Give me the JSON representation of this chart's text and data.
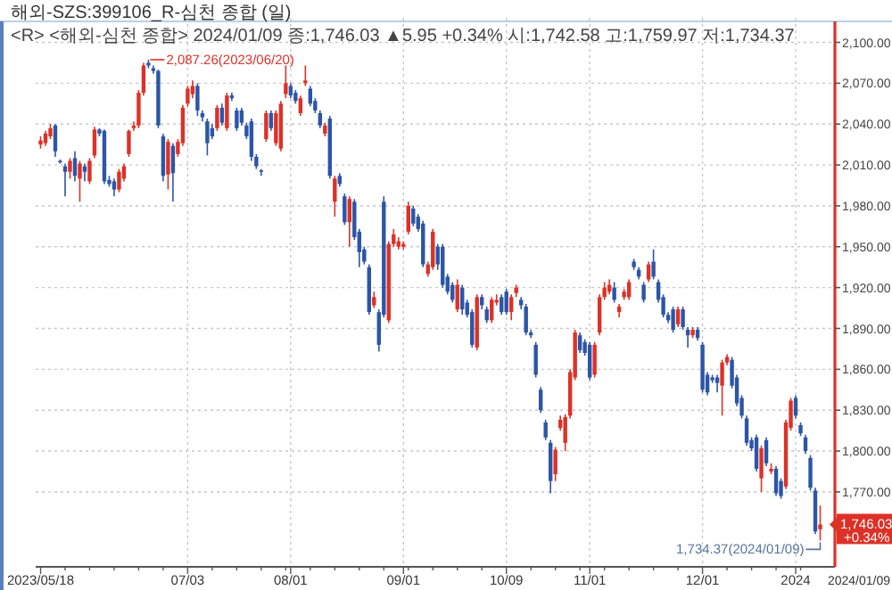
{
  "chart_data": {
    "type": "candlestick",
    "title": "해외-SZS:399106_R-심천 종합 (일)",
    "subtitle": "<R> <해외-심천 종합> 2024/01/09 종:1,746.03 ▲5.95 +0.34% 시:1,742.58 고:1,759.97 저:1,734.37",
    "categories": [
      "2023/05/18",
      null,
      null,
      null,
      null,
      null,
      null,
      null,
      null,
      null,
      null,
      null,
      null,
      null,
      null,
      null,
      null,
      null,
      null,
      null,
      null,
      null,
      null,
      null,
      null,
      null,
      null,
      null,
      null,
      null,
      "07/03",
      null,
      null,
      null,
      null,
      null,
      null,
      null,
      null,
      null,
      null,
      null,
      null,
      null,
      null,
      null,
      null,
      null,
      null,
      null,
      null,
      "08/01",
      null,
      null,
      null,
      null,
      null,
      null,
      null,
      null,
      null,
      null,
      null,
      null,
      null,
      null,
      null,
      null,
      null,
      null,
      null,
      null,
      null,
      null,
      "09/01",
      null,
      null,
      null,
      null,
      null,
      null,
      null,
      null,
      null,
      null,
      null,
      null,
      null,
      null,
      null,
      null,
      null,
      null,
      null,
      null,
      "10/09",
      null,
      null,
      null,
      null,
      null,
      null,
      null,
      null,
      null,
      null,
      null,
      null,
      null,
      null,
      null,
      null,
      "11/01",
      null,
      null,
      null,
      null,
      null,
      null,
      null,
      null,
      null,
      null,
      null,
      null,
      null,
      null,
      null,
      null,
      null,
      null,
      null,
      null,
      null,
      null,
      "12/01",
      null,
      null,
      null,
      null,
      null,
      null,
      null,
      null,
      null,
      null,
      null,
      null,
      null,
      null,
      null,
      null,
      null,
      null,
      "2024",
      null,
      null,
      null,
      null,
      null
    ],
    "ohlc": [
      [
        2025,
        2031,
        2022,
        2028
      ],
      [
        2026,
        2035,
        2024,
        2033
      ],
      [
        2031,
        2040,
        2029,
        2037
      ],
      [
        2039,
        2040,
        2016,
        2020
      ],
      [
        2013,
        2014,
        2011,
        2012
      ],
      [
        2009,
        2011,
        1987,
        2005
      ],
      [
        2005,
        2015,
        2000,
        2013
      ],
      [
        2015,
        2020,
        1998,
        2002
      ],
      [
        2000,
        2013,
        1983,
        2011
      ],
      [
        2009,
        2011,
        1998,
        2005
      ],
      [
        1998,
        2015,
        1996,
        2013
      ],
      [
        2017,
        2038,
        2015,
        2036
      ],
      [
        2036,
        2037,
        2031,
        2033
      ],
      [
        2035,
        2036,
        1996,
        1998
      ],
      [
        1999,
        2002,
        1994,
        1996
      ],
      [
        1998,
        2000,
        1987,
        1992
      ],
      [
        1992,
        2007,
        1990,
        2005
      ],
      [
        2000,
        2011,
        1998,
        2009
      ],
      [
        2018,
        2036,
        2016,
        2035
      ],
      [
        2037,
        2042,
        2035,
        2039
      ],
      [
        2039,
        2065,
        2037,
        2063
      ],
      [
        2063,
        2085,
        2061,
        2083
      ],
      [
        2085,
        2087.26,
        2081,
        2083
      ],
      [
        2081,
        2083,
        2077,
        2079
      ],
      [
        2079,
        2080,
        2037,
        2039
      ],
      [
        2031,
        2033,
        1998,
        2002
      ],
      [
        2003,
        2029,
        1992,
        2027
      ],
      [
        2024,
        2026,
        1983,
        2004
      ],
      [
        2018,
        2029,
        2016,
        2027
      ],
      [
        2026,
        2054,
        2024,
        2052
      ],
      [
        2055,
        2068,
        2053,
        2066
      ],
      [
        2062,
        2072,
        2059,
        2068
      ],
      [
        2068,
        2070,
        2046,
        2050
      ],
      [
        2048,
        2050,
        2042,
        2045
      ],
      [
        2042,
        2044,
        2017,
        2026
      ],
      [
        2037,
        2040,
        2029,
        2031
      ],
      [
        2037,
        2054,
        2035,
        2052
      ],
      [
        2052,
        2055,
        2039,
        2041
      ],
      [
        2037,
        2063,
        2035,
        2061
      ],
      [
        2061,
        2063,
        2057,
        2059
      ],
      [
        2050,
        2052,
        2035,
        2037
      ],
      [
        2050,
        2052,
        2039,
        2041
      ],
      [
        2039,
        2041,
        2029,
        2031
      ],
      [
        2042,
        2044,
        2013,
        2016
      ],
      [
        2016,
        2018,
        2007,
        2009
      ],
      [
        2006,
        2007,
        2002,
        2005
      ],
      [
        2029,
        2050,
        2027,
        2048
      ],
      [
        2048,
        2050,
        2035,
        2037
      ],
      [
        2026,
        2050,
        2024,
        2048
      ],
      [
        2022,
        2057,
        2020,
        2055
      ],
      [
        2062,
        2083,
        2059,
        2070
      ],
      [
        2068,
        2070,
        2059,
        2061
      ],
      [
        2063,
        2065,
        2055,
        2057
      ],
      [
        2048,
        2061,
        2046,
        2059
      ],
      [
        2070,
        2083,
        2068,
        2072
      ],
      [
        2066,
        2068,
        2053,
        2055
      ],
      [
        2057,
        2059,
        2048,
        2050
      ],
      [
        2048,
        2050,
        2037,
        2039
      ],
      [
        2033,
        2041,
        2031,
        2039
      ],
      [
        2044,
        2046,
        2000,
        2002
      ],
      [
        1983,
        2002,
        1972,
        2000
      ],
      [
        2002,
        2004,
        1994,
        1996
      ],
      [
        1987,
        1989,
        1966,
        1968
      ],
      [
        1968,
        1987,
        1950,
        1985
      ],
      [
        1983,
        1985,
        1955,
        1957
      ],
      [
        1961,
        1963,
        1935,
        1946
      ],
      [
        1948,
        1950,
        1937,
        1939
      ],
      [
        1935,
        1937,
        1900,
        1902
      ],
      [
        1907,
        1917,
        1905,
        1913
      ],
      [
        1902,
        1904,
        1873,
        1878
      ],
      [
        1983,
        1987,
        1898,
        1900
      ],
      [
        1896,
        1954,
        1894,
        1952
      ],
      [
        1952,
        1963,
        1950,
        1959
      ],
      [
        1950,
        1957,
        1948,
        1954
      ],
      [
        1950,
        1954,
        1948,
        1952
      ],
      [
        1961,
        1983,
        1959,
        1980
      ],
      [
        1978,
        1980,
        1965,
        1967
      ],
      [
        1972,
        1974,
        1961,
        1963
      ],
      [
        1967,
        1969,
        1935,
        1937
      ],
      [
        1930,
        1939,
        1928,
        1937
      ],
      [
        1935,
        1963,
        1933,
        1961
      ],
      [
        1950,
        1952,
        1933,
        1937
      ],
      [
        1950,
        1952,
        1920,
        1922
      ],
      [
        1928,
        1930,
        1915,
        1917
      ],
      [
        1922,
        1924,
        1909,
        1911
      ],
      [
        1904,
        1926,
        1902,
        1922
      ],
      [
        1920,
        1922,
        1900,
        1904
      ],
      [
        1909,
        1911,
        1898,
        1900
      ],
      [
        1902,
        1904,
        1876,
        1878
      ],
      [
        1876,
        1915,
        1874,
        1913
      ],
      [
        1913,
        1915,
        1904,
        1907
      ],
      [
        1904,
        1906,
        1894,
        1896
      ],
      [
        1896,
        1913,
        1894,
        1911
      ],
      [
        1909,
        1915,
        1907,
        1911
      ],
      [
        1913,
        1915,
        1900,
        1902
      ],
      [
        1917,
        1919,
        1900,
        1902
      ],
      [
        1902,
        1915,
        1896,
        1913
      ],
      [
        1916,
        1922,
        1913,
        1920
      ],
      [
        1911,
        1913,
        1904,
        1907
      ],
      [
        1906,
        1908,
        1885,
        1887
      ],
      [
        1887,
        1889,
        1883,
        1885
      ],
      [
        1878,
        1880,
        1854,
        1856
      ],
      [
        1845,
        1847,
        1828,
        1830
      ],
      [
        1821,
        1823,
        1808,
        1810
      ],
      [
        1806,
        1808,
        1769,
        1778
      ],
      [
        1783,
        1803,
        1778,
        1801
      ],
      [
        1817,
        1826,
        1815,
        1823
      ],
      [
        1806,
        1827,
        1800,
        1825
      ],
      [
        1826,
        1860,
        1824,
        1858
      ],
      [
        1854,
        1889,
        1852,
        1887
      ],
      [
        1885,
        1887,
        1872,
        1874
      ],
      [
        1880,
        1882,
        1870,
        1872
      ],
      [
        1878,
        1880,
        1852,
        1854
      ],
      [
        1856,
        1880,
        1854,
        1878
      ],
      [
        1887,
        1915,
        1885,
        1913
      ],
      [
        1913,
        1924,
        1911,
        1920
      ],
      [
        1917,
        1926,
        1915,
        1922
      ],
      [
        1920,
        1924,
        1909,
        1911
      ],
      [
        1902,
        1908,
        1898,
        1906
      ],
      [
        1913,
        1919,
        1911,
        1917
      ],
      [
        1913,
        1926,
        1911,
        1924
      ],
      [
        1939,
        1941,
        1933,
        1935
      ],
      [
        1933,
        1935,
        1926,
        1928
      ],
      [
        1922,
        1924,
        1909,
        1911
      ],
      [
        1926,
        1939,
        1924,
        1937
      ],
      [
        1939,
        1948,
        1926,
        1928
      ],
      [
        1924,
        1926,
        1909,
        1911
      ],
      [
        1913,
        1915,
        1898,
        1900
      ],
      [
        1900,
        1902,
        1894,
        1896
      ],
      [
        1904,
        1906,
        1887,
        1889
      ],
      [
        1893,
        1906,
        1891,
        1904
      ],
      [
        1904,
        1906,
        1889,
        1891
      ],
      [
        1889,
        1891,
        1876,
        1885
      ],
      [
        1885,
        1891,
        1883,
        1889
      ],
      [
        1889,
        1891,
        1881,
        1883
      ],
      [
        1878,
        1880,
        1843,
        1845
      ],
      [
        1856,
        1858,
        1841,
        1843
      ],
      [
        1854,
        1856,
        1850,
        1852
      ],
      [
        1854,
        1856,
        1843,
        1850
      ],
      [
        1848,
        1867,
        1826,
        1865
      ],
      [
        1865,
        1871,
        1863,
        1869
      ],
      [
        1867,
        1869,
        1846,
        1848
      ],
      [
        1854,
        1856,
        1833,
        1835
      ],
      [
        1839,
        1841,
        1824,
        1826
      ],
      [
        1824,
        1826,
        1804,
        1806
      ],
      [
        1808,
        1810,
        1800,
        1802
      ],
      [
        1810,
        1812,
        1785,
        1787
      ],
      [
        1780,
        1804,
        1770,
        1802
      ],
      [
        1808,
        1810,
        1789,
        1791
      ],
      [
        1785,
        1791,
        1783,
        1787
      ],
      [
        1787,
        1789,
        1767,
        1769
      ],
      [
        1778,
        1780,
        1765,
        1767
      ],
      [
        1774,
        1823,
        1772,
        1821
      ],
      [
        1817,
        1839,
        1815,
        1837
      ],
      [
        1839,
        1841,
        1824,
        1826
      ],
      [
        1819,
        1821,
        1811,
        1813
      ],
      [
        1810,
        1812,
        1798,
        1800
      ],
      [
        1795,
        1797,
        1771,
        1773
      ],
      [
        1771,
        1773,
        1739,
        1741
      ],
      [
        1742.58,
        1759.97,
        1734.37,
        1746.03
      ]
    ],
    "ylim": [
      1715,
      2118
    ],
    "yticks": [
      {
        "value": 1770,
        "label": "1,770.00"
      },
      {
        "value": 1800,
        "label": "1,800.00"
      },
      {
        "value": 1830,
        "label": "1,830.00"
      },
      {
        "value": 1860,
        "label": "1,860.00"
      },
      {
        "value": 1890,
        "label": "1,890.00"
      },
      {
        "value": 1920,
        "label": "1,920.00"
      },
      {
        "value": 1950,
        "label": "1,950.00"
      },
      {
        "value": 1980,
        "label": "1,980.00"
      },
      {
        "value": 2010,
        "label": "2,010.00"
      },
      {
        "value": 2040,
        "label": "2,040.00"
      },
      {
        "value": 2070,
        "label": "2,070.00"
      },
      {
        "value": 2100,
        "label": "2,100.00"
      }
    ],
    "grid": true,
    "annotations": [
      "2,087.26(2023/06/20)",
      "1,734.37(2024/01/09)",
      "1,746.03",
      "+0.34%",
      "2024/01/09"
    ]
  }
}
